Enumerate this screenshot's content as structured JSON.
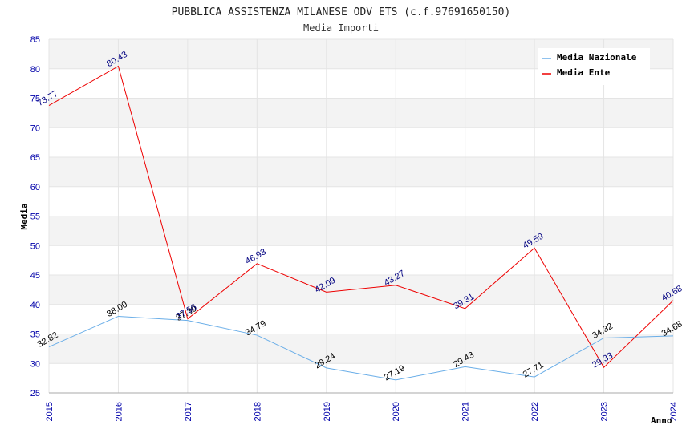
{
  "chart_data": {
    "type": "line",
    "title": "PUBBLICA ASSISTENZA MILANESE ODV ETS (c.f.97691650150)",
    "subtitle": "Media Importi",
    "xlabel": "Anno",
    "ylabel": "Media",
    "x": [
      "2015",
      "2016",
      "2017",
      "2018",
      "2019",
      "2020",
      "2021",
      "2022",
      "2023",
      "2024"
    ],
    "ylim": [
      25,
      85
    ],
    "yticks": [
      "25",
      "30",
      "35",
      "40",
      "45",
      "50",
      "55",
      "60",
      "65",
      "70",
      "75",
      "80",
      "85"
    ],
    "grid": true,
    "legend_position": "top-right",
    "series": [
      {
        "name": "Media Nazionale",
        "color": "#6aaee8",
        "label_color": "#000000",
        "values": [
          32.82,
          38.0,
          37.3,
          34.79,
          29.24,
          27.19,
          29.43,
          27.71,
          34.32,
          34.68
        ],
        "labels": [
          "32.82",
          "38.00",
          "37.30",
          "34.79",
          "29.24",
          "27.19",
          "29.43",
          "27.71",
          "34.32",
          "34.68"
        ]
      },
      {
        "name": "Media Ente",
        "color": "#ee0000",
        "label_color": "#000080",
        "values": [
          73.77,
          80.43,
          37.56,
          46.93,
          42.09,
          43.27,
          39.31,
          49.59,
          29.33,
          40.68
        ],
        "labels": [
          "73.77",
          "80.43",
          "37.56",
          "46.93",
          "42.09",
          "43.27",
          "39.31",
          "49.59",
          "29.33",
          "40.68"
        ]
      }
    ]
  }
}
